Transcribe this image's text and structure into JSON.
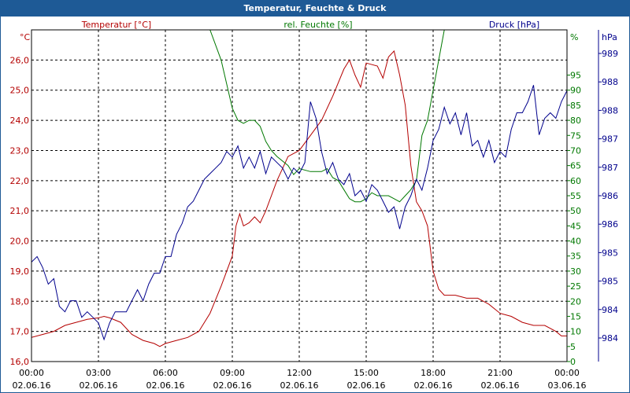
{
  "window": {
    "title": "Temperatur, Feuchte & Druck"
  },
  "colors": {
    "temperature": "#b40000",
    "humidity": "#007800",
    "pressure": "#00008c",
    "titlebar": "#1e5a96"
  },
  "chart_data": {
    "type": "line",
    "title": "Temperatur, Feuchte & Druck",
    "grid": true,
    "x": {
      "range": [
        "02.06.16 00:00",
        "03.06.16 00:00"
      ],
      "ticks": [
        {
          "time": "00:00",
          "date": "02.06.16"
        },
        {
          "time": "03:00",
          "date": "02.06.16"
        },
        {
          "time": "06:00",
          "date": "02.06.16"
        },
        {
          "time": "09:00",
          "date": "02.06.16"
        },
        {
          "time": "12:00",
          "date": "02.06.16"
        },
        {
          "time": "15:00",
          "date": "02.06.16"
        },
        {
          "time": "18:00",
          "date": "02.06.16"
        },
        {
          "time": "21:00",
          "date": "02.06.16"
        },
        {
          "time": "00:00",
          "date": "03.06.16"
        }
      ]
    },
    "axes": {
      "temperature": {
        "label": "Temperatur [°C]",
        "unit": "°C",
        "ylim": [
          16.0,
          27.0
        ],
        "ticks": [
          "16,0",
          "17,0",
          "18,0",
          "19,0",
          "20,0",
          "21,0",
          "22,0",
          "23,0",
          "24,0",
          "25,0",
          "26,0"
        ]
      },
      "humidity": {
        "label": "rel. Feuchte [%]",
        "unit": "%",
        "ylim": [
          0,
          110
        ],
        "ticks": [
          "0",
          "5",
          "10",
          "15",
          "20",
          "25",
          "30",
          "35",
          "40",
          "45",
          "50",
          "55",
          "60",
          "65",
          "70",
          "75",
          "80",
          "85",
          "90",
          "95"
        ]
      },
      "pressure": {
        "label": "Druck [hPa]",
        "unit": "hPa",
        "ylim": [
          983.5,
          989.5
        ],
        "tick_labels_top_to_bottom": [
          "989",
          "988",
          "988",
          "987",
          "987",
          "986",
          "986",
          "985",
          "985",
          "984",
          "984"
        ]
      }
    },
    "series": [
      {
        "name": "Temperatur [°C]",
        "axis": "temperature",
        "points": [
          [
            "00:00",
            16.8
          ],
          [
            "00:30",
            16.9
          ],
          [
            "01:00",
            17.0
          ],
          [
            "01:30",
            17.2
          ],
          [
            "02:00",
            17.3
          ],
          [
            "02:30",
            17.4
          ],
          [
            "03:00",
            17.45
          ],
          [
            "03:15",
            17.5
          ],
          [
            "03:30",
            17.45
          ],
          [
            "04:00",
            17.3
          ],
          [
            "04:30",
            16.9
          ],
          [
            "05:00",
            16.7
          ],
          [
            "05:30",
            16.6
          ],
          [
            "05:45",
            16.5
          ],
          [
            "06:00",
            16.6
          ],
          [
            "06:30",
            16.7
          ],
          [
            "07:00",
            16.8
          ],
          [
            "07:30",
            17.0
          ],
          [
            "08:00",
            17.6
          ],
          [
            "08:30",
            18.5
          ],
          [
            "09:00",
            19.5
          ],
          [
            "09:10",
            20.5
          ],
          [
            "09:20",
            20.9
          ],
          [
            "09:30",
            20.5
          ],
          [
            "09:45",
            20.6
          ],
          [
            "10:00",
            20.8
          ],
          [
            "10:15",
            20.6
          ],
          [
            "10:30",
            21.0
          ],
          [
            "11:00",
            22.0
          ],
          [
            "11:30",
            22.8
          ],
          [
            "12:00",
            23.0
          ],
          [
            "12:30",
            23.5
          ],
          [
            "13:00",
            24.0
          ],
          [
            "13:30",
            24.8
          ],
          [
            "14:00",
            25.7
          ],
          [
            "14:15",
            26.0
          ],
          [
            "14:30",
            25.5
          ],
          [
            "14:45",
            25.1
          ],
          [
            "15:00",
            25.9
          ],
          [
            "15:30",
            25.8
          ],
          [
            "15:45",
            25.4
          ],
          [
            "16:00",
            26.1
          ],
          [
            "16:15",
            26.3
          ],
          [
            "16:30",
            25.5
          ],
          [
            "16:45",
            24.5
          ],
          [
            "17:00",
            22.5
          ],
          [
            "17:15",
            21.3
          ],
          [
            "17:30",
            21.0
          ],
          [
            "17:45",
            20.5
          ],
          [
            "18:00",
            19.0
          ],
          [
            "18:15",
            18.4
          ],
          [
            "18:30",
            18.2
          ],
          [
            "19:00",
            18.2
          ],
          [
            "19:30",
            18.1
          ],
          [
            "20:00",
            18.1
          ],
          [
            "20:30",
            17.9
          ],
          [
            "21:00",
            17.6
          ],
          [
            "21:30",
            17.5
          ],
          [
            "22:00",
            17.3
          ],
          [
            "22:30",
            17.2
          ],
          [
            "23:00",
            17.2
          ],
          [
            "23:30",
            17.0
          ],
          [
            "23:45",
            16.85
          ],
          [
            "24:00",
            16.85
          ]
        ]
      },
      {
        "name": "rel. Feuchte [%]",
        "axis": "humidity",
        "points": [
          [
            "08:00",
            110
          ],
          [
            "08:30",
            100
          ],
          [
            "09:00",
            84
          ],
          [
            "09:15",
            80
          ],
          [
            "09:30",
            79
          ],
          [
            "09:45",
            80
          ],
          [
            "10:00",
            80
          ],
          [
            "10:15",
            78
          ],
          [
            "10:30",
            73
          ],
          [
            "10:45",
            70
          ],
          [
            "11:00",
            68
          ],
          [
            "11:30",
            65
          ],
          [
            "11:45",
            62
          ],
          [
            "12:00",
            64
          ],
          [
            "12:30",
            63
          ],
          [
            "13:00",
            63
          ],
          [
            "13:15",
            64
          ],
          [
            "13:30",
            61
          ],
          [
            "13:45",
            60
          ],
          [
            "14:00",
            57
          ],
          [
            "14:15",
            54
          ],
          [
            "14:30",
            53
          ],
          [
            "14:45",
            53
          ],
          [
            "15:00",
            54
          ],
          [
            "15:15",
            56
          ],
          [
            "15:30",
            55
          ],
          [
            "16:00",
            55
          ],
          [
            "16:15",
            54
          ],
          [
            "16:30",
            53
          ],
          [
            "16:45",
            55
          ],
          [
            "17:00",
            57
          ],
          [
            "17:15",
            60
          ],
          [
            "17:30",
            75
          ],
          [
            "17:45",
            80
          ],
          [
            "18:00",
            90
          ],
          [
            "18:15",
            100
          ],
          [
            "18:30",
            110
          ]
        ]
      },
      {
        "name": "Druck [hPa]",
        "axis": "pressure",
        "points": [
          [
            "00:00",
            985.3
          ],
          [
            "00:15",
            985.4
          ],
          [
            "00:30",
            985.2
          ],
          [
            "00:45",
            984.9
          ],
          [
            "01:00",
            985.0
          ],
          [
            "01:15",
            984.5
          ],
          [
            "01:30",
            984.4
          ],
          [
            "01:45",
            984.6
          ],
          [
            "02:00",
            984.6
          ],
          [
            "02:15",
            984.3
          ],
          [
            "02:30",
            984.4
          ],
          [
            "02:45",
            984.3
          ],
          [
            "03:00",
            984.2
          ],
          [
            "03:15",
            983.9
          ],
          [
            "03:30",
            984.2
          ],
          [
            "03:45",
            984.4
          ],
          [
            "04:00",
            984.4
          ],
          [
            "04:15",
            984.4
          ],
          [
            "04:30",
            984.6
          ],
          [
            "04:45",
            984.8
          ],
          [
            "05:00",
            984.6
          ],
          [
            "05:15",
            984.9
          ],
          [
            "05:30",
            985.1
          ],
          [
            "05:45",
            985.1
          ],
          [
            "06:00",
            985.4
          ],
          [
            "06:15",
            985.4
          ],
          [
            "06:30",
            985.8
          ],
          [
            "06:45",
            986.0
          ],
          [
            "07:00",
            986.3
          ],
          [
            "07:15",
            986.4
          ],
          [
            "07:30",
            986.6
          ],
          [
            "07:45",
            986.8
          ],
          [
            "08:00",
            986.9
          ],
          [
            "08:15",
            987.0
          ],
          [
            "08:30",
            987.1
          ],
          [
            "08:45",
            987.3
          ],
          [
            "09:00",
            987.2
          ],
          [
            "09:15",
            987.4
          ],
          [
            "09:30",
            987.0
          ],
          [
            "09:45",
            987.2
          ],
          [
            "10:00",
            987.0
          ],
          [
            "10:15",
            987.3
          ],
          [
            "10:30",
            986.9
          ],
          [
            "10:45",
            987.2
          ],
          [
            "11:00",
            987.1
          ],
          [
            "11:15",
            987.0
          ],
          [
            "11:30",
            986.8
          ],
          [
            "11:45",
            987.0
          ],
          [
            "12:00",
            986.9
          ],
          [
            "12:15",
            987.1
          ],
          [
            "12:30",
            988.2
          ],
          [
            "12:45",
            987.9
          ],
          [
            "13:00",
            987.3
          ],
          [
            "13:15",
            986.9
          ],
          [
            "13:30",
            987.1
          ],
          [
            "13:45",
            986.8
          ],
          [
            "14:00",
            986.7
          ],
          [
            "14:15",
            986.9
          ],
          [
            "14:30",
            986.5
          ],
          [
            "14:45",
            986.6
          ],
          [
            "15:00",
            986.4
          ],
          [
            "15:15",
            986.7
          ],
          [
            "15:30",
            986.6
          ],
          [
            "15:45",
            986.4
          ],
          [
            "16:00",
            986.2
          ],
          [
            "16:15",
            986.3
          ],
          [
            "16:30",
            985.9
          ],
          [
            "16:45",
            986.3
          ],
          [
            "17:00",
            986.5
          ],
          [
            "17:15",
            986.8
          ],
          [
            "17:30",
            986.6
          ],
          [
            "17:45",
            987.0
          ],
          [
            "18:00",
            987.5
          ],
          [
            "18:15",
            987.7
          ],
          [
            "18:30",
            988.1
          ],
          [
            "18:45",
            987.8
          ],
          [
            "19:00",
            988.0
          ],
          [
            "19:15",
            987.6
          ],
          [
            "19:30",
            988.0
          ],
          [
            "19:45",
            987.4
          ],
          [
            "20:00",
            987.5
          ],
          [
            "20:15",
            987.2
          ],
          [
            "20:30",
            987.5
          ],
          [
            "20:45",
            987.1
          ],
          [
            "21:00",
            987.3
          ],
          [
            "21:15",
            987.2
          ],
          [
            "21:30",
            987.7
          ],
          [
            "21:45",
            988.0
          ],
          [
            "22:00",
            988.0
          ],
          [
            "22:15",
            988.2
          ],
          [
            "22:30",
            988.5
          ],
          [
            "22:45",
            987.6
          ],
          [
            "23:00",
            987.9
          ],
          [
            "23:15",
            988.0
          ],
          [
            "23:30",
            987.9
          ],
          [
            "23:45",
            988.2
          ],
          [
            "24:00",
            988.4
          ]
        ]
      }
    ]
  }
}
